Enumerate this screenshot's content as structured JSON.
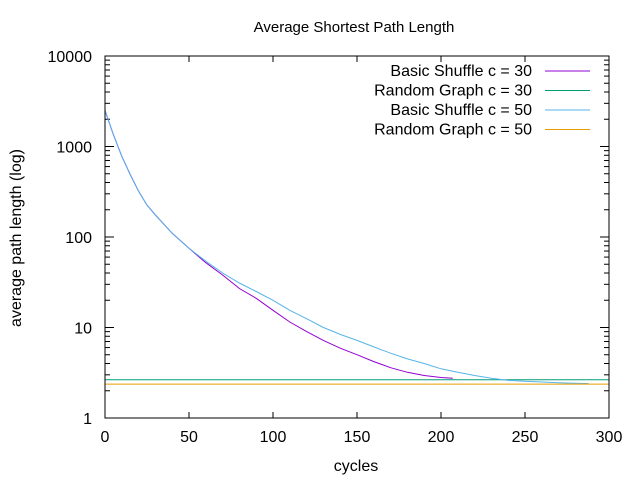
{
  "chart_data": {
    "type": "line",
    "title": "Average Shortest Path Length",
    "xlabel": "cycles",
    "ylabel": "average path length (log)",
    "xlim": [
      0,
      300
    ],
    "ylim": [
      1,
      10000
    ],
    "ylog": true,
    "grid": false,
    "legend_placement": "top-right",
    "x_ticks": [
      0,
      50,
      100,
      150,
      200,
      250,
      300
    ],
    "x_tick_labels": [
      "0",
      "50",
      "100",
      "150",
      "200",
      "250",
      "300"
    ],
    "y_ticks": [
      1,
      10,
      100,
      1000,
      10000
    ],
    "y_tick_labels": [
      "1",
      "10",
      "100",
      "1000",
      "10000"
    ],
    "series": [
      {
        "name": "Basic Shuffle c = 30",
        "color": "#9400d3",
        "x": [
          0,
          5,
          10,
          15,
          20,
          25,
          30,
          40,
          50,
          60,
          70,
          80,
          90,
          100,
          110,
          120,
          130,
          140,
          150,
          160,
          170,
          180,
          190,
          200,
          207
        ],
        "y": [
          2500,
          1350,
          780,
          490,
          320,
          225,
          175,
          110,
          75,
          52,
          38,
          27,
          21,
          15.5,
          11.5,
          9.0,
          7.2,
          5.9,
          5.0,
          4.2,
          3.6,
          3.2,
          2.95,
          2.8,
          2.75
        ]
      },
      {
        "name": "Random Graph c = 30",
        "color": "#009e73",
        "x": [
          0,
          300
        ],
        "y": [
          2.65,
          2.65
        ]
      },
      {
        "name": "Basic Shuffle c = 50",
        "color": "#56b4e9",
        "x": [
          0,
          5,
          10,
          15,
          20,
          25,
          30,
          40,
          50,
          60,
          70,
          80,
          90,
          100,
          110,
          120,
          130,
          140,
          150,
          160,
          170,
          180,
          190,
          200,
          210,
          220,
          230,
          240,
          250,
          260,
          270,
          280,
          288
        ],
        "y": [
          2500,
          1350,
          780,
          490,
          320,
          225,
          175,
          110,
          75,
          54,
          40,
          31,
          25,
          20,
          15.5,
          12.5,
          10,
          8.4,
          7.2,
          6.1,
          5.2,
          4.5,
          4.0,
          3.5,
          3.2,
          2.95,
          2.75,
          2.6,
          2.55,
          2.5,
          2.45,
          2.42,
          2.4
        ]
      },
      {
        "name": "Random Graph c = 50",
        "color": "#e69f00",
        "x": [
          0,
          300
        ],
        "y": [
          2.37,
          2.37
        ]
      }
    ]
  }
}
